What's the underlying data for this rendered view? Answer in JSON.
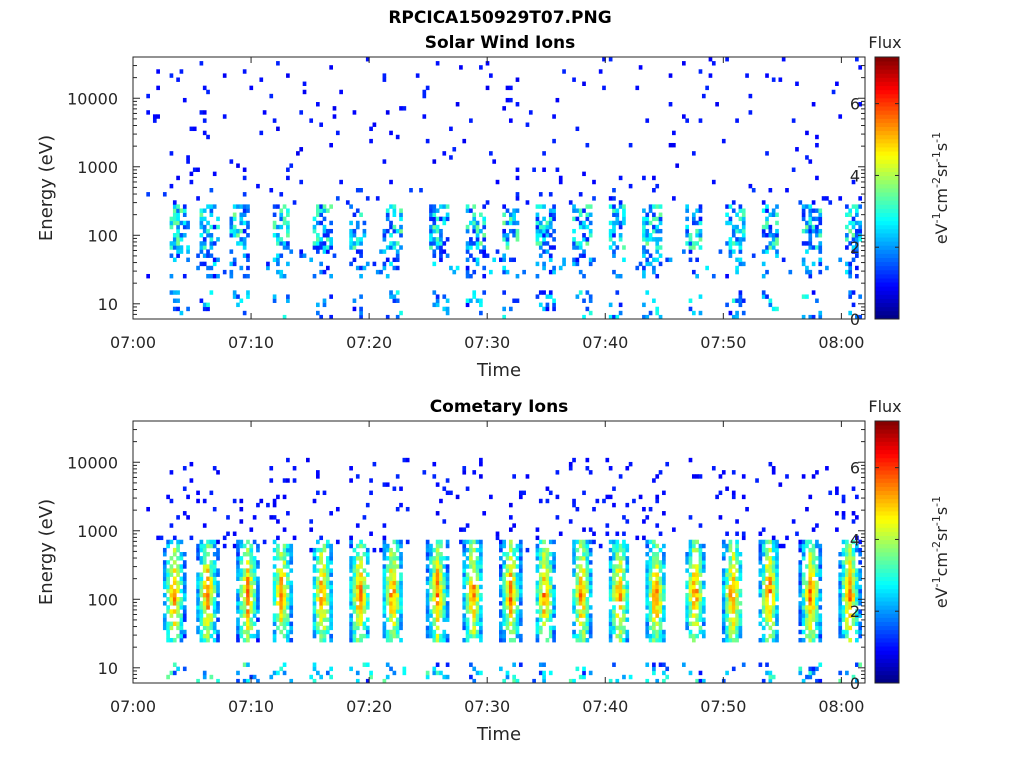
{
  "figure": {
    "title": "RPCICA150929T07.PNG"
  },
  "chart_data": [
    {
      "type": "heatmap",
      "title": "Solar Wind Ions",
      "xlabel": "Time",
      "ylabel": "Energy (eV)",
      "x_ticks": [
        "07:00",
        "07:10",
        "07:20",
        "07:30",
        "07:40",
        "07:50",
        "08:00"
      ],
      "x_range": [
        "07:00",
        "08:02"
      ],
      "y_scale": "log",
      "y_ticks": [
        "10",
        "100",
        "1000",
        "10000"
      ],
      "y_range": [
        6,
        40000
      ],
      "colorbar": {
        "title": "Flux",
        "label": "eV-1cm-2sr-1s-1",
        "ticks": [
          "0",
          "2",
          "4",
          "6"
        ],
        "range": [
          0,
          7.3
        ],
        "colormap": "jet"
      },
      "pattern": {
        "description_type": "sparse_scatter",
        "burst_minutes": [
          4,
          6.5,
          9,
          12.5,
          16,
          19,
          22,
          26,
          29,
          32,
          35,
          38,
          41,
          44,
          47.5,
          51,
          54,
          57.5,
          61
        ],
        "burst_energy_eV": [
          60,
          300
        ],
        "burst_flux": [
          1,
          3
        ],
        "background_energy_eV": [
          500,
          40000
        ],
        "background_flux": [
          0.8,
          1.5
        ],
        "low_energy_stripes_eV": [
          6,
          15
        ]
      }
    },
    {
      "type": "heatmap",
      "title": "Cometary Ions",
      "xlabel": "Time",
      "ylabel": "Energy (eV)",
      "x_ticks": [
        "07:00",
        "07:10",
        "07:20",
        "07:30",
        "07:40",
        "07:50",
        "08:00"
      ],
      "x_range": [
        "07:00",
        "08:02"
      ],
      "y_scale": "log",
      "y_ticks": [
        "10",
        "100",
        "1000",
        "10000"
      ],
      "y_range": [
        6,
        40000
      ],
      "colorbar": {
        "title": "Flux",
        "label": "eV-1cm-2sr-1s-1",
        "ticks": [
          "0",
          "2",
          "4",
          "6"
        ],
        "range": [
          0,
          7.3
        ],
        "colormap": "jet"
      },
      "pattern": {
        "description_type": "dense_bursts",
        "burst_minutes": [
          3.5,
          6.3,
          9.7,
          12.6,
          16,
          19.2,
          22,
          25.8,
          28.8,
          32,
          34.9,
          38,
          41.2,
          44.3,
          47.6,
          50.8,
          53.9,
          57.4,
          60.7
        ],
        "burst_energy_eV": [
          25,
          700
        ],
        "burst_peak_eV": 120,
        "burst_peak_flux": 5.2,
        "background_energy_eV": [
          500,
          12000
        ],
        "background_flux": [
          0.8,
          1.3
        ],
        "low_energy_stripes_eV": [
          6,
          12
        ]
      }
    }
  ]
}
